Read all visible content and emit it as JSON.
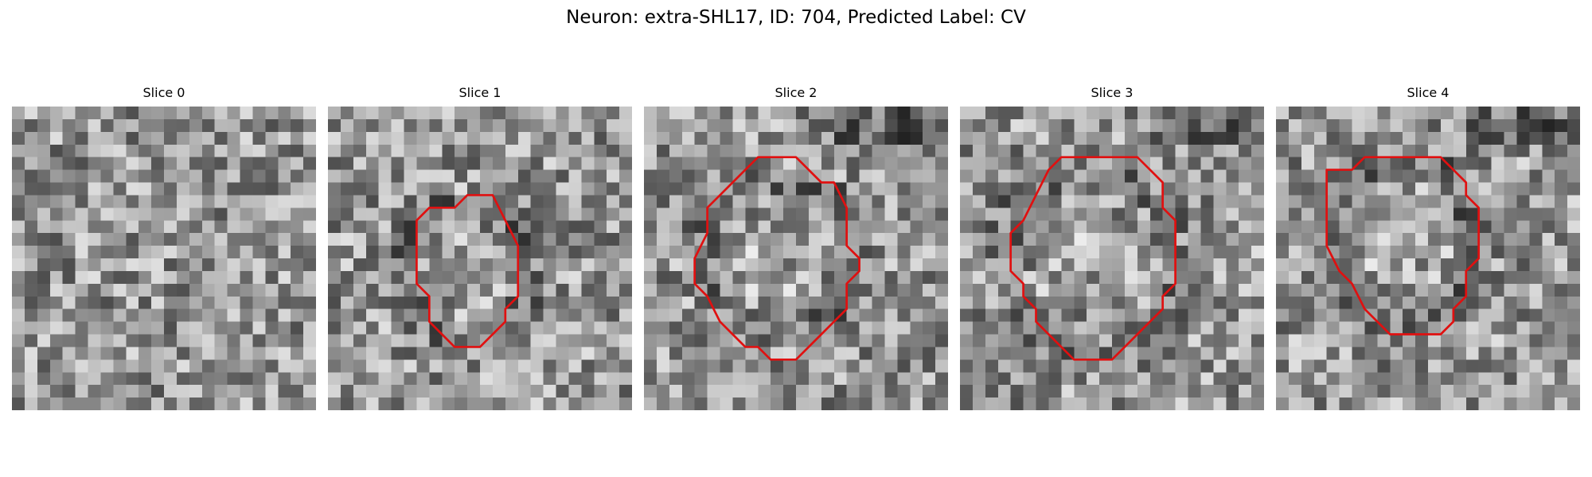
{
  "figure": {
    "title": "Neuron: extra-SHL17, ID: 704, Predicted Label: CV"
  },
  "panels": [
    {
      "title": "Slice 0",
      "has_contour": false,
      "contour": [],
      "blob": {
        "strength": 0
      }
    },
    {
      "title": "Slice 1",
      "has_contour": true,
      "contour": [
        [
          10,
          8
        ],
        [
          11,
          7
        ],
        [
          13,
          7
        ],
        [
          14,
          9
        ],
        [
          15,
          11
        ],
        [
          15,
          15
        ],
        [
          14,
          16
        ],
        [
          14,
          17
        ],
        [
          13,
          18
        ],
        [
          12,
          19
        ],
        [
          10,
          19
        ],
        [
          9,
          18
        ],
        [
          8,
          17
        ],
        [
          8,
          15
        ],
        [
          7,
          14
        ],
        [
          7,
          9
        ],
        [
          8,
          8
        ]
      ],
      "blob": {
        "cx": 11,
        "cy": 13,
        "r": 4,
        "strength": 28,
        "dark_ring": true
      }
    },
    {
      "title": "Slice 2",
      "has_contour": true,
      "contour": [
        [
          7,
          6
        ],
        [
          8,
          5
        ],
        [
          9,
          4
        ],
        [
          12,
          4
        ],
        [
          13,
          5
        ],
        [
          14,
          6
        ],
        [
          15,
          6
        ],
        [
          16,
          8
        ],
        [
          16,
          11
        ],
        [
          17,
          12
        ],
        [
          17,
          13
        ],
        [
          16,
          14
        ],
        [
          16,
          16
        ],
        [
          15,
          17
        ],
        [
          14,
          18
        ],
        [
          13,
          19
        ],
        [
          12,
          20
        ],
        [
          10,
          20
        ],
        [
          9,
          19
        ],
        [
          8,
          19
        ],
        [
          7,
          18
        ],
        [
          6,
          17
        ],
        [
          5,
          15
        ],
        [
          4,
          14
        ],
        [
          4,
          12
        ],
        [
          5,
          10
        ],
        [
          5,
          8
        ],
        [
          6,
          7
        ]
      ],
      "blob": {
        "cx": 10.5,
        "cy": 12,
        "r": 5,
        "strength": 24,
        "dark_ring": true
      }
    },
    {
      "title": "Slice 3",
      "has_contour": true,
      "contour": [
        [
          7,
          5
        ],
        [
          8,
          4
        ],
        [
          14,
          4
        ],
        [
          15,
          5
        ],
        [
          16,
          6
        ],
        [
          16,
          8
        ],
        [
          17,
          9
        ],
        [
          17,
          14
        ],
        [
          16,
          15
        ],
        [
          16,
          16
        ],
        [
          15,
          17
        ],
        [
          14,
          18
        ],
        [
          13,
          19
        ],
        [
          12,
          20
        ],
        [
          9,
          20
        ],
        [
          8,
          19
        ],
        [
          7,
          18
        ],
        [
          6,
          17
        ],
        [
          6,
          16
        ],
        [
          5,
          15
        ],
        [
          5,
          14
        ],
        [
          4,
          13
        ],
        [
          4,
          10
        ],
        [
          5,
          9
        ],
        [
          6,
          7
        ]
      ],
      "blob": {
        "cx": 10.5,
        "cy": 12,
        "r": 6,
        "strength": 18,
        "dark_ring": true
      }
    },
    {
      "title": "Slice 4",
      "has_contour": true,
      "contour": [
        [
          4,
          5
        ],
        [
          6,
          5
        ],
        [
          7,
          4
        ],
        [
          13,
          4
        ],
        [
          14,
          5
        ],
        [
          15,
          6
        ],
        [
          15,
          7
        ],
        [
          16,
          8
        ],
        [
          16,
          12
        ],
        [
          15,
          13
        ],
        [
          15,
          15
        ],
        [
          14,
          16
        ],
        [
          14,
          17
        ],
        [
          13,
          18
        ],
        [
          9,
          18
        ],
        [
          8,
          17
        ],
        [
          7,
          16
        ],
        [
          6,
          14
        ],
        [
          5,
          13
        ],
        [
          4,
          11
        ]
      ],
      "blob": {
        "cx": 10,
        "cy": 11,
        "r": 5,
        "strength": 26,
        "dark_ring": true
      }
    }
  ]
}
